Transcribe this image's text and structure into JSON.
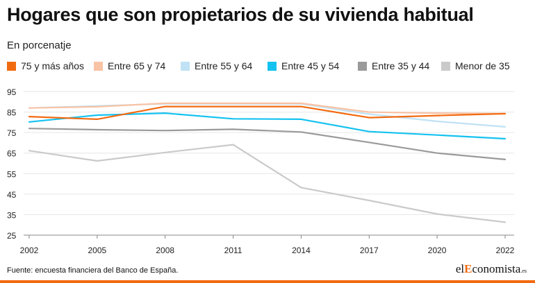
{
  "header": {
    "title": "Hogares que son propietarios de su vivienda habitual",
    "subtitle": "En porcenatje"
  },
  "footer": {
    "source": "Fuente: encuesta financiera del Banco de España.",
    "brand_pre": "el",
    "brand_e": "E",
    "brand_post": "conomista",
    "brand_suffix": ".es"
  },
  "colors": {
    "accent": "#f26a10"
  },
  "chart_data": {
    "type": "line",
    "x": [
      2002,
      2005,
      2008,
      2011,
      2014,
      2017,
      2020,
      2022
    ],
    "ylim": [
      25,
      95
    ],
    "yticks": [
      25,
      35,
      45,
      55,
      65,
      75,
      85,
      95
    ],
    "grid": true,
    "legend_position": "top",
    "series": [
      {
        "name": "75 y más años",
        "color": "#f26a10",
        "values": [
          82.8,
          81.5,
          87.7,
          87.7,
          87.7,
          82.3,
          83.3,
          84.2
        ]
      },
      {
        "name": "Entre 65 y 74",
        "color": "#f9c3a5",
        "values": [
          87.0,
          87.6,
          89.3,
          89.3,
          89.3,
          85.0,
          84.5,
          84.2
        ]
      },
      {
        "name": "Entre 55 y 64",
        "color": "#c0e2f4",
        "values": [
          87.0,
          88.0,
          89.0,
          89.0,
          89.0,
          84.0,
          80.5,
          77.8
        ]
      },
      {
        "name": "Entre 45 y 54",
        "color": "#14c2f0",
        "values": [
          80.2,
          83.5,
          84.5,
          81.7,
          81.5,
          75.5,
          73.8,
          72.0
        ]
      },
      {
        "name": "Entre 35 y 44",
        "color": "#9a9a9a",
        "values": [
          77.0,
          76.4,
          76.0,
          76.6,
          75.3,
          70.2,
          65.0,
          61.9
        ]
      },
      {
        "name": "Menor de 35",
        "color": "#cacaca",
        "values": [
          66.2,
          61.2,
          65.3,
          69.1,
          48.2,
          41.9,
          35.3,
          31.3
        ]
      }
    ]
  }
}
